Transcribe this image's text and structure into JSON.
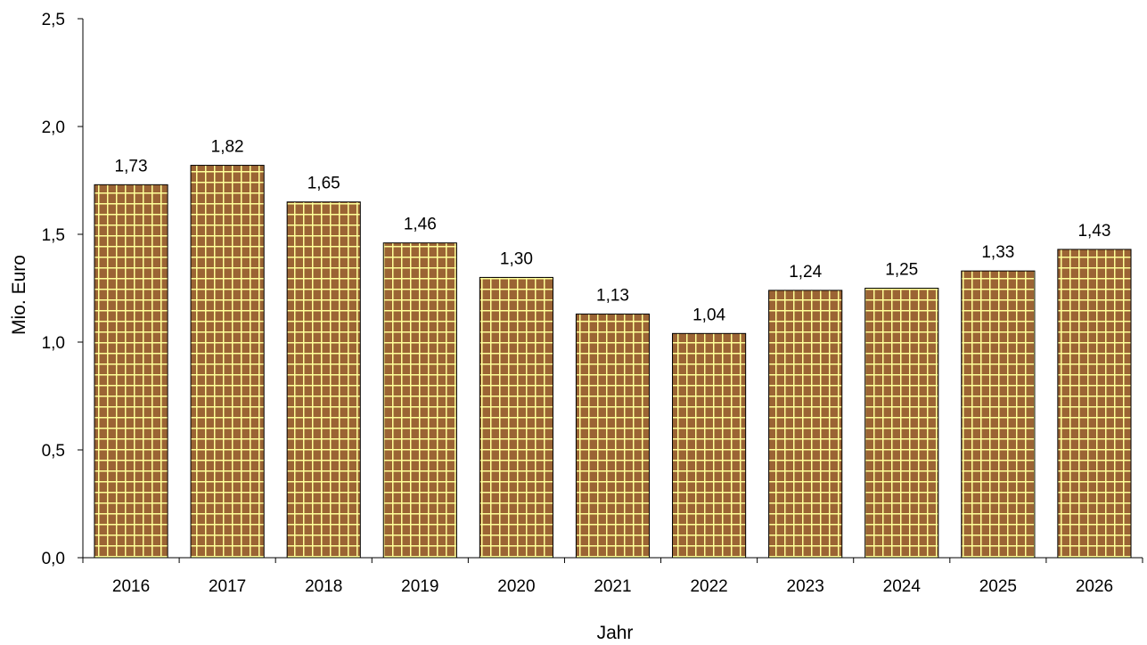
{
  "chart_data": {
    "type": "bar",
    "title": "",
    "xlabel": "Jahr",
    "ylabel": "Mio. Euro",
    "categories": [
      "2016",
      "2017",
      "2018",
      "2019",
      "2020",
      "2021",
      "2022",
      "2023",
      "2024",
      "2025",
      "2026"
    ],
    "values": [
      1.73,
      1.82,
      1.65,
      1.46,
      1.3,
      1.13,
      1.04,
      1.24,
      1.25,
      1.33,
      1.43
    ],
    "value_labels": [
      "1,73",
      "1,82",
      "1,65",
      "1,46",
      "1,30",
      "1,13",
      "1,04",
      "1,24",
      "1,25",
      "1,33",
      "1,43"
    ],
    "ylim": [
      0,
      2.5
    ],
    "yticks": [
      0,
      0.5,
      1.0,
      1.5,
      2.0,
      2.5
    ],
    "ytick_labels": [
      "0,0",
      "0,5",
      "1,0",
      "1,5",
      "2,0",
      "2,5"
    ],
    "grid": false,
    "legend": "none",
    "colors": {
      "bar_fill": "#9b6434",
      "bar_pattern": "#ffff99",
      "bar_outline": "#000000",
      "axis": "#000000"
    }
  }
}
